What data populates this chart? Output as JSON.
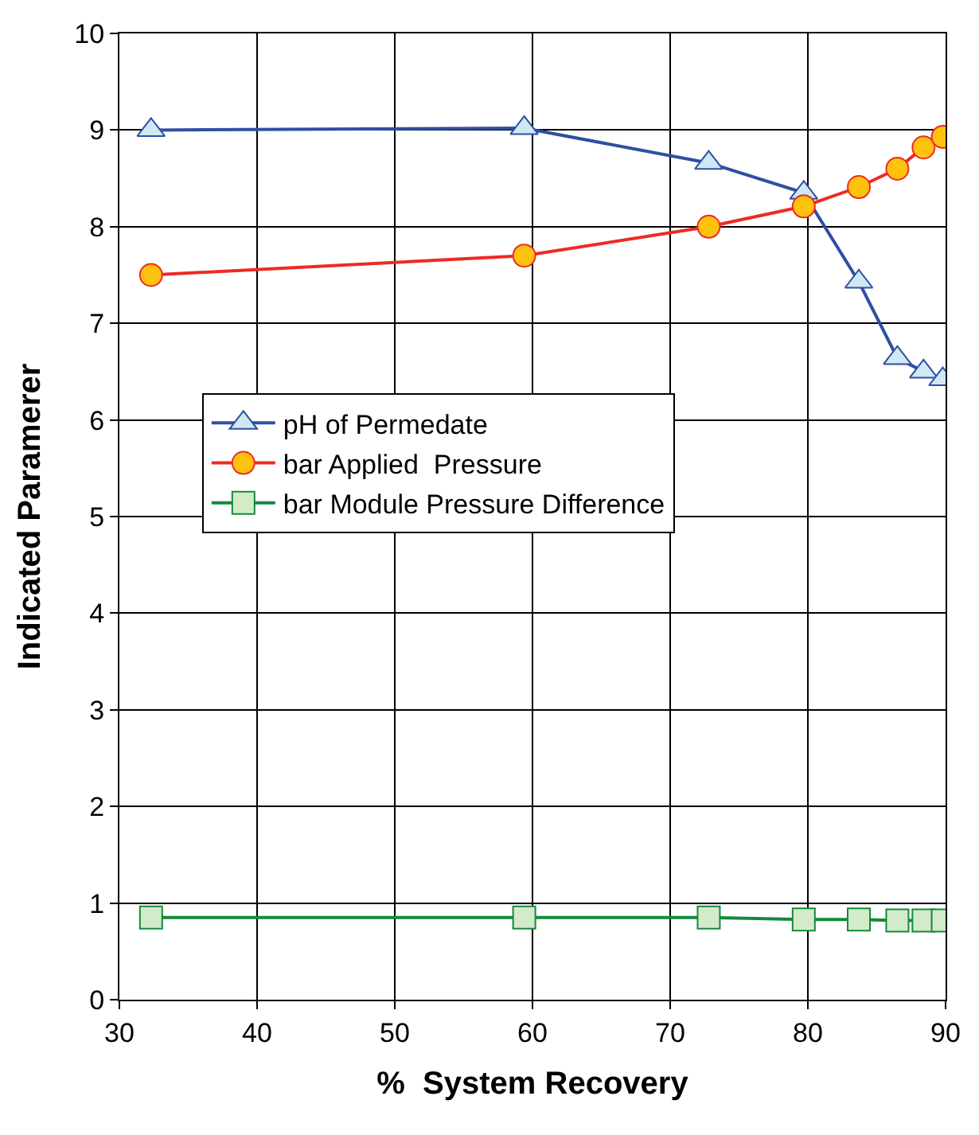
{
  "chart_data": {
    "type": "line",
    "xlabel": "%  System Recovery",
    "ylabel": "Indicated Paramerer",
    "x": [
      32.3,
      59.4,
      72.8,
      79.7,
      83.7,
      86.5,
      88.4,
      89.8
    ],
    "series": [
      {
        "name": "pH of Permedate",
        "color": "#2e4fa3",
        "colors": [
          "#cfe8f3",
          "#cfe8f3",
          "#cfe8f3",
          "#cfe8f3",
          "#cfe8f3",
          "#cfe8f3",
          "#cfe8f3",
          "#cfe8f3"
        ],
        "marker": "triangle",
        "values": [
          9.0,
          9.02,
          8.66,
          8.35,
          7.43,
          6.64,
          6.5,
          6.42
        ]
      },
      {
        "name": "bar Applied  Pressure",
        "color": "#ee2a24",
        "colors": [
          "#ffc20e",
          "#ffc20e",
          "#ffc20e",
          "#ffc20e",
          "#ffc20e",
          "#ffc20e",
          "#ffc20e",
          "#ffc20e"
        ],
        "marker": "circle",
        "values": [
          7.5,
          7.7,
          8.0,
          8.21,
          8.41,
          8.6,
          8.82,
          8.93
        ]
      },
      {
        "name": "bar Module Pressure Difference",
        "color": "#138a3c",
        "colors": [
          "#d3ebc8",
          "#d3ebc8",
          "#d3ebc8",
          "#d3ebc8",
          "#d3ebc8",
          "#d3ebc8",
          "#d3ebc8",
          "#d3ebc8"
        ],
        "marker": "square",
        "values": [
          0.85,
          0.85,
          0.85,
          0.83,
          0.83,
          0.82,
          0.82,
          0.82
        ]
      }
    ],
    "xlim": [
      30,
      90
    ],
    "xticks": [
      30,
      40,
      50,
      60,
      70,
      80,
      90
    ],
    "ylim": [
      0,
      10
    ],
    "yticks": [
      0,
      1,
      2,
      3,
      4,
      5,
      6,
      7,
      8,
      9,
      10
    ],
    "grid": true,
    "legend": "center left",
    "line_style": "solid"
  }
}
